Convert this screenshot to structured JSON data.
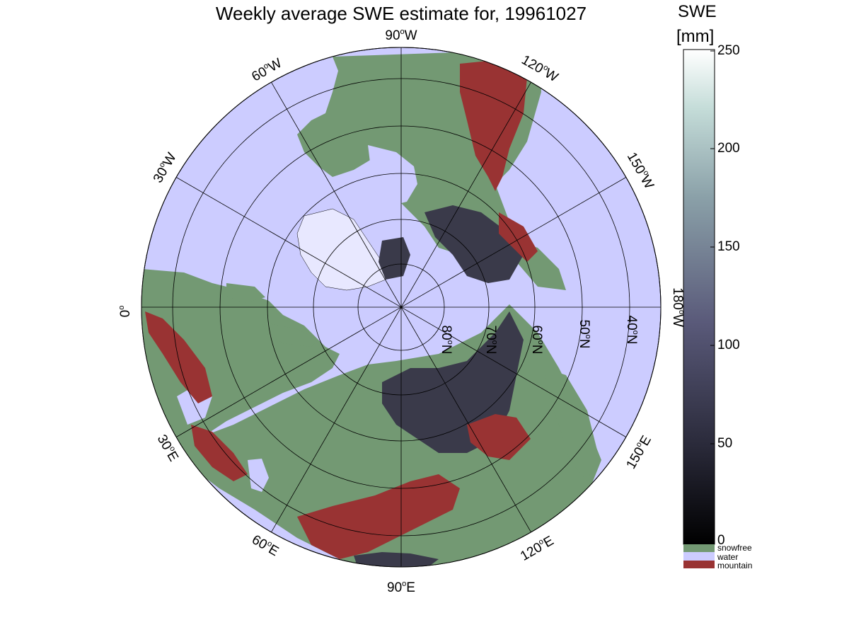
{
  "title": "Weekly average SWE estimate for, 19961027",
  "colorbar": {
    "title_line1": "SWE",
    "title_line2": "[mm]",
    "ticks": [
      "250",
      "200",
      "150",
      "100",
      "50",
      "0"
    ],
    "range_mm": [
      0,
      250
    ],
    "categories": [
      {
        "label": "snowfree",
        "color": "#739973"
      },
      {
        "label": "water",
        "color": "#ccccff"
      },
      {
        "label": "mountain",
        "color": "#993333"
      }
    ]
  },
  "map": {
    "projection": "north polar stereographic",
    "longitude_labels": [
      {
        "deg": "90",
        "dir": "W"
      },
      {
        "deg": "60",
        "dir": "W"
      },
      {
        "deg": "30",
        "dir": "W"
      },
      {
        "deg": "0",
        "dir": ""
      },
      {
        "deg": "30",
        "dir": "E"
      },
      {
        "deg": "60",
        "dir": "E"
      },
      {
        "deg": "90",
        "dir": "E"
      },
      {
        "deg": "120",
        "dir": "E"
      },
      {
        "deg": "150",
        "dir": "E"
      },
      {
        "deg": "180",
        "dir": "W"
      },
      {
        "deg": "150",
        "dir": "W"
      },
      {
        "deg": "120",
        "dir": "W"
      }
    ],
    "latitude_labels": [
      {
        "deg": "80",
        "dir": "N"
      },
      {
        "deg": "70",
        "dir": "N"
      },
      {
        "deg": "60",
        "dir": "N"
      },
      {
        "deg": "50",
        "dir": "N"
      },
      {
        "deg": "40",
        "dir": "N"
      }
    ],
    "colors": {
      "water": "#ccccff",
      "snowfree": "#739973",
      "mountain": "#993333",
      "snow_dark": "#3a3a4a"
    }
  }
}
